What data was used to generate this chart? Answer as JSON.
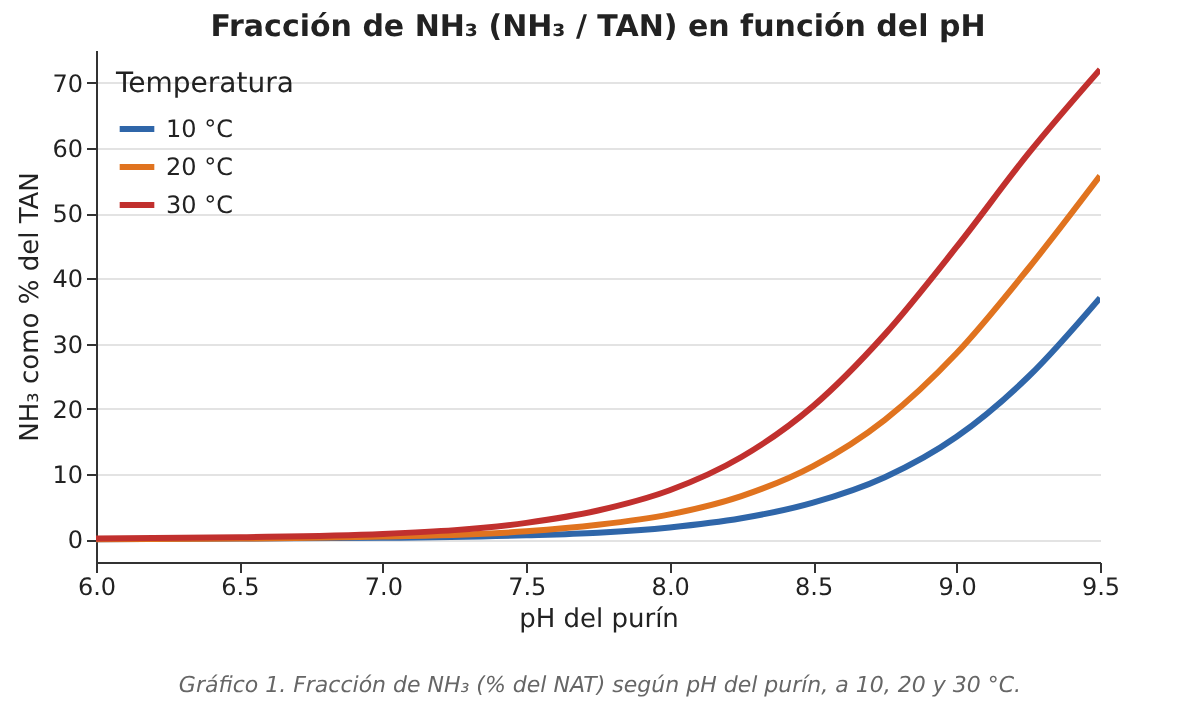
{
  "chart_data": {
    "type": "line",
    "title": "Fracción de NH₃ (NH₃ / TAN) en función del pH",
    "xlabel": "pH del purín",
    "ylabel": "NH₃ como % del TAN",
    "legend_title": "Temperatura",
    "annotations": [
      "Gráfico 1. Fracción de NH₃ (% del NAT) según pH del purín, a 10, 20 y 30 °C."
    ],
    "x": [
      6.0,
      6.5,
      7.0,
      7.5,
      7.75,
      8.0,
      8.25,
      8.5,
      8.75,
      9.0,
      9.25,
      9.5
    ],
    "series": [
      {
        "name": "10 °C",
        "color": "#2f66a9",
        "values": [
          0.0,
          0.1,
          0.2,
          0.6,
          1.0,
          1.8,
          3.2,
          5.6,
          9.5,
          15.7,
          24.9,
          37
        ]
      },
      {
        "name": "20 °C",
        "color": "#e0731f",
        "values": [
          0.0,
          0.1,
          0.4,
          1.2,
          2.2,
          3.8,
          6.6,
          11.2,
          18.3,
          28.5,
          41.5,
          55.7
        ]
      },
      {
        "name": "30 °C",
        "color": "#c1302e",
        "values": [
          0.1,
          0.3,
          0.8,
          2.5,
          4.4,
          7.5,
          12.6,
          20.4,
          31.4,
          44.8,
          59.1,
          72
        ]
      }
    ],
    "xlim": [
      6.0,
      9.5
    ],
    "xticks": [
      {
        "value": 6,
        "label": "6.0"
      },
      6.5,
      {
        "value": 7,
        "label": "7.0"
      },
      7.5,
      {
        "value": 8,
        "label": "8.0"
      },
      8.5,
      {
        "value": 9,
        "label": "9.0"
      },
      9.5
    ],
    "ylim": [
      -3.5,
      75
    ],
    "yticks": [
      0,
      10,
      20,
      30,
      40,
      50,
      60,
      70
    ],
    "grid": "y",
    "legend": "top left",
    "line_style": "solid"
  }
}
